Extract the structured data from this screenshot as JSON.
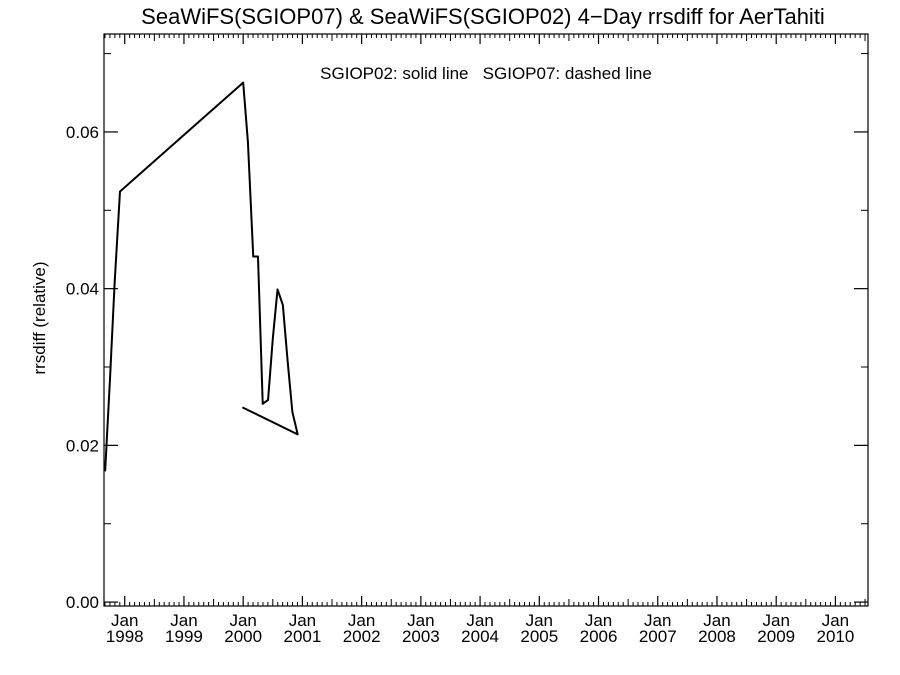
{
  "chart_data": {
    "type": "line",
    "title": "SeaWiFS(SGIOP07) & SeaWiFS(SGIOP02) 4−Day rrsdiff for AerTahiti",
    "ylabel": "rrsdiff (relative)",
    "xlabel": "",
    "annotation": "SGIOP02: solid line   SGIOP07: dashed line",
    "xlim": [
      1997.65,
      2010.55
    ],
    "ylim": [
      -0.0005,
      0.0725
    ],
    "y_ticks": [
      {
        "value": 0.0,
        "label": "0.00"
      },
      {
        "value": 0.02,
        "label": "0.02"
      },
      {
        "value": 0.04,
        "label": "0.04"
      },
      {
        "value": 0.06,
        "label": "0.06"
      }
    ],
    "x_ticks": [
      {
        "value": 1998,
        "label_top": "Jan",
        "label_bottom": "1998"
      },
      {
        "value": 1999,
        "label_top": "Jan",
        "label_bottom": "1999"
      },
      {
        "value": 2000,
        "label_top": "Jan",
        "label_bottom": "2000"
      },
      {
        "value": 2001,
        "label_top": "Jan",
        "label_bottom": "2001"
      },
      {
        "value": 2002,
        "label_top": "Jan",
        "label_bottom": "2002"
      },
      {
        "value": 2003,
        "label_top": "Jan",
        "label_bottom": "2003"
      },
      {
        "value": 2004,
        "label_top": "Jan",
        "label_bottom": "2004"
      },
      {
        "value": 2005,
        "label_top": "Jan",
        "label_bottom": "2005"
      },
      {
        "value": 2006,
        "label_top": "Jan",
        "label_bottom": "2006"
      },
      {
        "value": 2007,
        "label_top": "Jan",
        "label_bottom": "2007"
      },
      {
        "value": 2008,
        "label_top": "Jan",
        "label_bottom": "2008"
      },
      {
        "value": 2009,
        "label_top": "Jan",
        "label_bottom": "2009"
      },
      {
        "value": 2010,
        "label_top": "Jan",
        "label_bottom": "2010"
      }
    ],
    "grid": false,
    "series": [
      {
        "name": "SGIOP02",
        "style": "solid",
        "color": "#000000",
        "x": [
          1997.67,
          1997.75,
          1997.83,
          1997.92,
          2000.0,
          2000.08,
          2000.17,
          2000.25,
          2000.33,
          2000.42,
          2000.5,
          2000.58,
          2000.67,
          2000.75,
          2000.83,
          2000.92,
          2000.0
        ],
        "y": [
          0.0168,
          0.0283,
          0.0408,
          0.0524,
          0.0663,
          0.0587,
          0.0441,
          0.0441,
          0.0253,
          0.0258,
          0.0336,
          0.0399,
          0.0379,
          0.0308,
          0.0243,
          0.0214,
          0.0248
        ]
      },
      {
        "name": "SGIOP07",
        "style": "dashed",
        "color": "#000000",
        "x": [],
        "y": []
      }
    ]
  }
}
